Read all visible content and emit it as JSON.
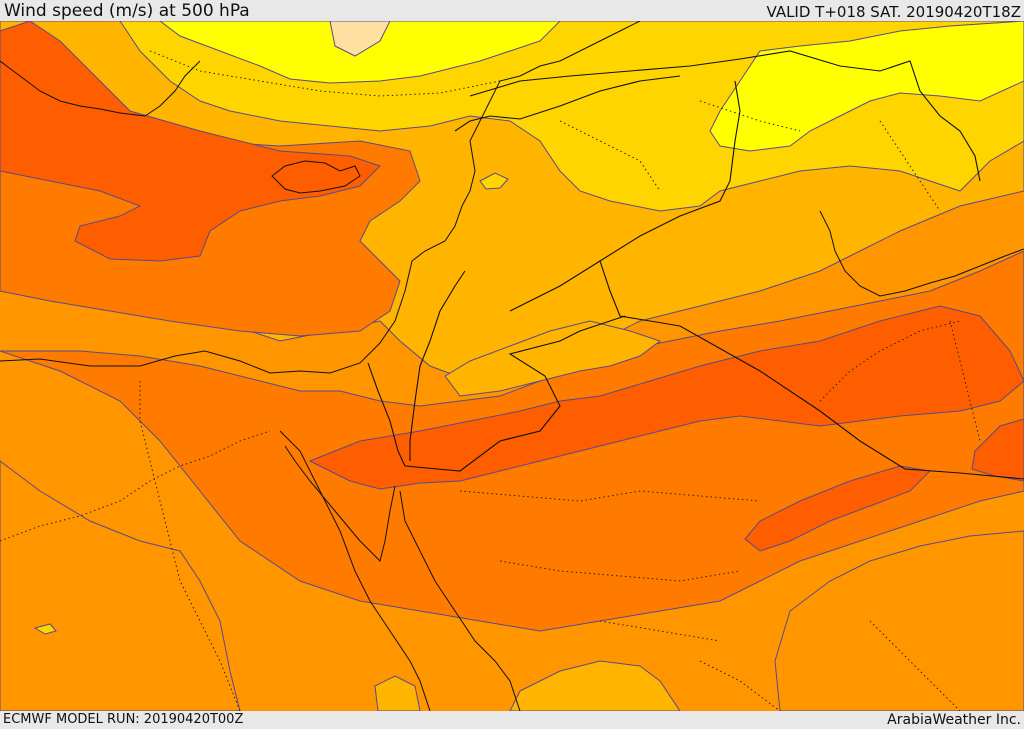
{
  "header": {
    "title": "Wind speed (m/s) at 500 hPa",
    "valid": "VALID T+018 SAT. 20190420T18Z"
  },
  "footer": {
    "model_run": "ECMWF MODEL RUN: 20190420T00Z",
    "credit": "ArabiaWeather Inc."
  },
  "map": {
    "colors": {
      "band_1": "#ffff00",
      "band_2": "#ffd500",
      "band_3": "#ffb400",
      "band_4": "#ff9600",
      "band_5": "#ff7b00",
      "band_6": "#ff5e00",
      "band_7": "#ffe0a0"
    }
  }
}
